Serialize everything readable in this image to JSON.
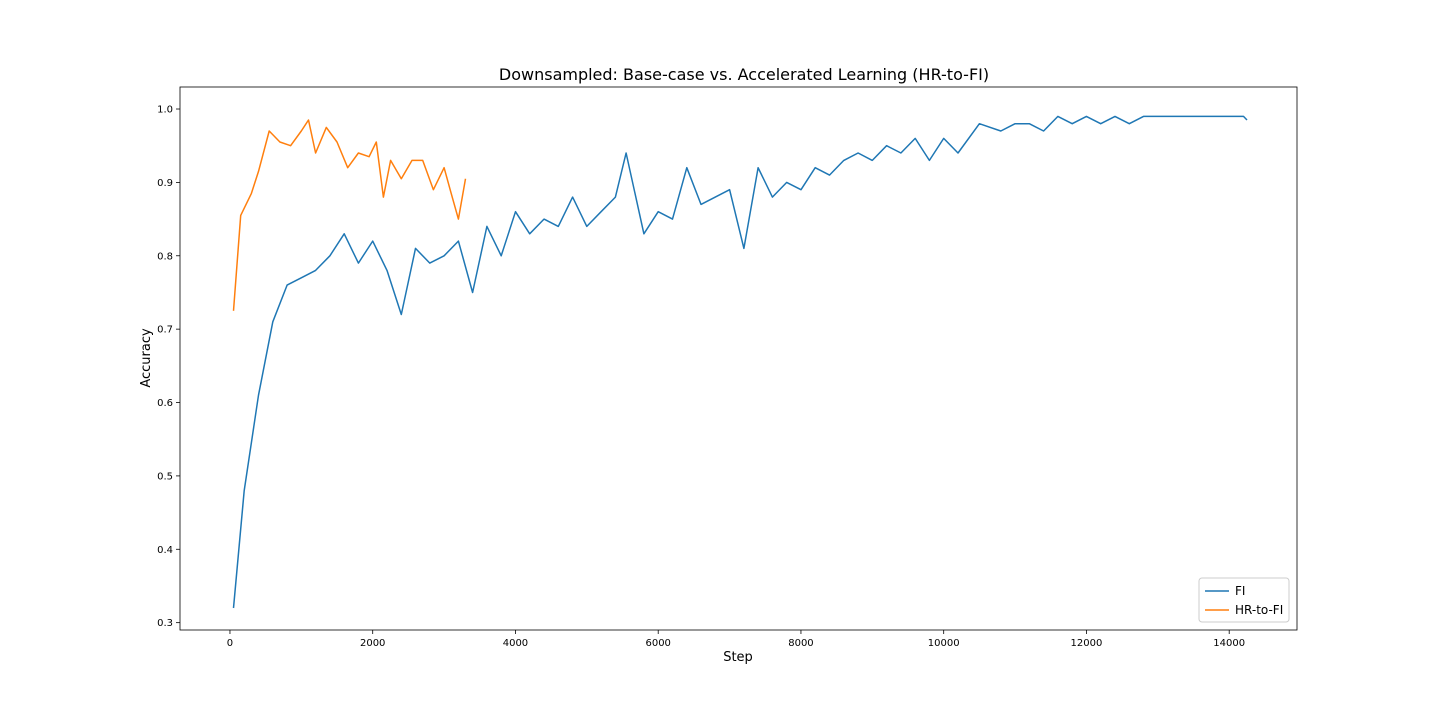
{
  "chart_data": {
    "type": "line",
    "title": "Downsampled: Base-case vs. Accelerated Learning (HR-to-FI)",
    "xlabel": "Step",
    "ylabel": "Accuracy",
    "xlim": [
      -700,
      14950
    ],
    "ylim": [
      0.29,
      1.03
    ],
    "xticks": [
      0,
      2000,
      4000,
      6000,
      8000,
      10000,
      12000,
      14000
    ],
    "yticks": [
      0.3,
      0.4,
      0.5,
      0.6,
      0.7,
      0.8,
      0.9,
      1.0
    ],
    "ytick_labels": [
      "0.3",
      "0.4",
      "0.5",
      "0.6",
      "0.7",
      "0.8",
      "0.9",
      "1.0"
    ],
    "grid": false,
    "legend_position": "lower-right",
    "series": [
      {
        "name": "FI",
        "color": "#1f77b4",
        "x": [
          50,
          200,
          400,
          600,
          800,
          1000,
          1200,
          1400,
          1600,
          1800,
          2000,
          2200,
          2400,
          2600,
          2800,
          3000,
          3200,
          3400,
          3600,
          3800,
          4000,
          4200,
          4400,
          4600,
          4800,
          5000,
          5200,
          5400,
          5550,
          5800,
          6000,
          6200,
          6400,
          6600,
          6800,
          7000,
          7200,
          7400,
          7600,
          7800,
          8000,
          8200,
          8400,
          8600,
          8800,
          9000,
          9200,
          9400,
          9600,
          9800,
          10000,
          10200,
          10500,
          10800,
          11000,
          11200,
          11400,
          11600,
          11800,
          12000,
          12200,
          12400,
          12600,
          12800,
          13000,
          13200,
          13400,
          13600,
          13800,
          14000,
          14200,
          14250
        ],
        "y": [
          0.32,
          0.48,
          0.61,
          0.71,
          0.76,
          0.77,
          0.78,
          0.8,
          0.83,
          0.79,
          0.82,
          0.78,
          0.72,
          0.81,
          0.79,
          0.8,
          0.82,
          0.75,
          0.84,
          0.8,
          0.86,
          0.83,
          0.85,
          0.84,
          0.88,
          0.84,
          0.86,
          0.88,
          0.94,
          0.83,
          0.86,
          0.85,
          0.92,
          0.87,
          0.88,
          0.89,
          0.81,
          0.92,
          0.88,
          0.9,
          0.89,
          0.92,
          0.91,
          0.93,
          0.94,
          0.93,
          0.95,
          0.94,
          0.96,
          0.93,
          0.96,
          0.94,
          0.98,
          0.97,
          0.98,
          0.98,
          0.97,
          0.99,
          0.98,
          0.99,
          0.98,
          0.99,
          0.98,
          0.99,
          0.99,
          0.99,
          0.99,
          0.99,
          0.99,
          0.99,
          0.99,
          0.985
        ]
      },
      {
        "name": "HR-to-FI",
        "color": "#ff7f0e",
        "x": [
          50,
          150,
          300,
          400,
          550,
          700,
          850,
          1000,
          1100,
          1200,
          1350,
          1500,
          1650,
          1800,
          1950,
          2050,
          2150,
          2250,
          2400,
          2550,
          2700,
          2850,
          3000,
          3100,
          3200,
          3300
        ],
        "y": [
          0.725,
          0.855,
          0.885,
          0.915,
          0.97,
          0.955,
          0.95,
          0.97,
          0.985,
          0.94,
          0.975,
          0.955,
          0.92,
          0.94,
          0.935,
          0.955,
          0.88,
          0.93,
          0.905,
          0.93,
          0.93,
          0.89,
          0.92,
          0.885,
          0.85,
          0.905
        ]
      }
    ]
  }
}
